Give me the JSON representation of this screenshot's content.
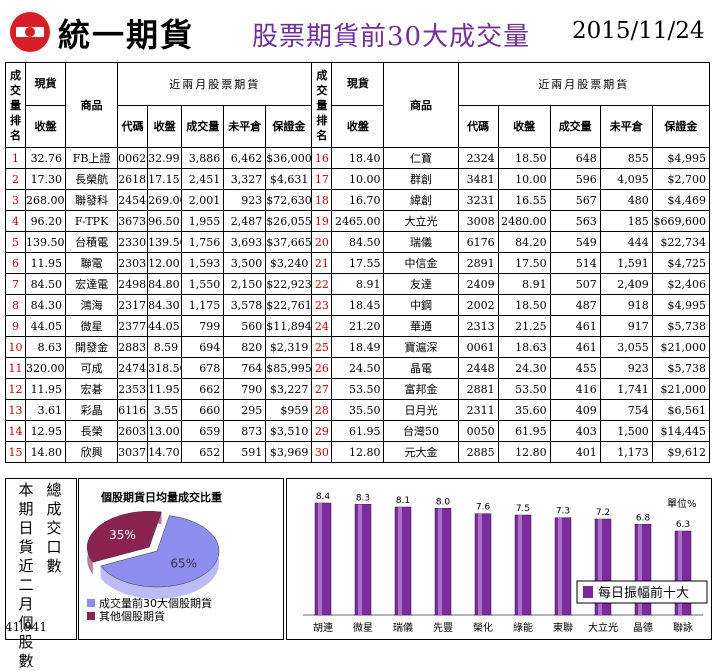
{
  "header": {
    "brand": "統一期貨",
    "title": "股票期貨前30大成交量",
    "date": "2015/11/24"
  },
  "table": {
    "rank_header": "成交量排名",
    "spot_header": "現貨",
    "close_header": "收盤",
    "product_header": "商品",
    "banner": "近兩月股票期貨",
    "col_headers": [
      "代碼",
      "收盤",
      "成交量",
      "未平倉",
      "保證金"
    ],
    "left": [
      {
        "rank": "1",
        "spot": "32.76",
        "name": "FB上證",
        "code": "006205",
        "close": "32.99",
        "vol": "3,886",
        "oi": "6,462",
        "margin": "$36,000"
      },
      {
        "rank": "2",
        "spot": "17.30",
        "name": "長榮航",
        "code": "2618",
        "close": "17.15",
        "vol": "2,451",
        "oi": "3,327",
        "margin": "$4,631"
      },
      {
        "rank": "3",
        "spot": "268.00",
        "name": "聯發科",
        "code": "2454",
        "close": "269.00",
        "vol": "2,001",
        "oi": "923",
        "margin": "$72,630"
      },
      {
        "rank": "4",
        "spot": "96.20",
        "name": "F-TPK",
        "code": "3673",
        "close": "96.50",
        "vol": "1,955",
        "oi": "2,487",
        "margin": "$26,055"
      },
      {
        "rank": "5",
        "spot": "139.50",
        "name": "台積電",
        "code": "2330",
        "close": "139.50",
        "vol": "1,756",
        "oi": "3,693",
        "margin": "$37,665"
      },
      {
        "rank": "6",
        "spot": "11.95",
        "name": "聯電",
        "code": "2303",
        "close": "12.00",
        "vol": "1,593",
        "oi": "3,500",
        "margin": "$3,240"
      },
      {
        "rank": "7",
        "spot": "84.50",
        "name": "宏達電",
        "code": "2498",
        "close": "84.80",
        "vol": "1,550",
        "oi": "2,150",
        "margin": "$22,923"
      },
      {
        "rank": "8",
        "spot": "84.30",
        "name": "鴻海",
        "code": "2317",
        "close": "84.30",
        "vol": "1,175",
        "oi": "3,578",
        "margin": "$22,761"
      },
      {
        "rank": "9",
        "spot": "44.05",
        "name": "微星",
        "code": "2377",
        "close": "44.05",
        "vol": "799",
        "oi": "560",
        "margin": "$11,894"
      },
      {
        "rank": "10",
        "spot": "8.63",
        "name": "開發金",
        "code": "2883",
        "close": "8.59",
        "vol": "694",
        "oi": "820",
        "margin": "$2,319"
      },
      {
        "rank": "11",
        "spot": "320.00",
        "name": "可成",
        "code": "2474",
        "close": "318.50",
        "vol": "678",
        "oi": "764",
        "margin": "$85,995"
      },
      {
        "rank": "12",
        "spot": "11.95",
        "name": "宏碁",
        "code": "2353",
        "close": "11.95",
        "vol": "662",
        "oi": "790",
        "margin": "$3,227"
      },
      {
        "rank": "13",
        "spot": "3.61",
        "name": "彩晶",
        "code": "6116",
        "close": "3.55",
        "vol": "660",
        "oi": "295",
        "margin": "$959"
      },
      {
        "rank": "14",
        "spot": "12.95",
        "name": "長榮",
        "code": "2603",
        "close": "13.00",
        "vol": "659",
        "oi": "873",
        "margin": "$3,510"
      },
      {
        "rank": "15",
        "spot": "14.80",
        "name": "欣興",
        "code": "3037",
        "close": "14.70",
        "vol": "652",
        "oi": "591",
        "margin": "$3,969"
      }
    ],
    "right": [
      {
        "rank": "16",
        "spot": "18.40",
        "name": "仁寶",
        "code": "2324",
        "close": "18.50",
        "vol": "648",
        "oi": "855",
        "margin": "$4,995"
      },
      {
        "rank": "17",
        "spot": "10.00",
        "name": "群創",
        "code": "3481",
        "close": "10.00",
        "vol": "596",
        "oi": "4,095",
        "margin": "$2,700"
      },
      {
        "rank": "18",
        "spot": "16.70",
        "name": "緯創",
        "code": "3231",
        "close": "16.55",
        "vol": "567",
        "oi": "480",
        "margin": "$4,469"
      },
      {
        "rank": "19",
        "spot": "2465.00",
        "name": "大立光",
        "code": "3008",
        "close": "2480.00",
        "vol": "563",
        "oi": "185",
        "margin": "$669,600"
      },
      {
        "rank": "20",
        "spot": "84.50",
        "name": "瑞儀",
        "code": "6176",
        "close": "84.20",
        "vol": "549",
        "oi": "444",
        "margin": "$22,734"
      },
      {
        "rank": "21",
        "spot": "17.55",
        "name": "中信金",
        "code": "2891",
        "close": "17.50",
        "vol": "514",
        "oi": "1,591",
        "margin": "$4,725"
      },
      {
        "rank": "22",
        "spot": "8.91",
        "name": "友達",
        "code": "2409",
        "close": "8.91",
        "vol": "507",
        "oi": "2,409",
        "margin": "$2,406"
      },
      {
        "rank": "23",
        "spot": "18.45",
        "name": "中鋼",
        "code": "2002",
        "close": "18.50",
        "vol": "487",
        "oi": "918",
        "margin": "$4,995"
      },
      {
        "rank": "24",
        "spot": "21.20",
        "name": "華通",
        "code": "2313",
        "close": "21.25",
        "vol": "461",
        "oi": "917",
        "margin": "$5,738"
      },
      {
        "rank": "25",
        "spot": "18.49",
        "name": "寶滬深",
        "code": "0061",
        "close": "18.63",
        "vol": "461",
        "oi": "3,055",
        "margin": "$21,000"
      },
      {
        "rank": "26",
        "spot": "24.50",
        "name": "晶電",
        "code": "2448",
        "close": "24.30",
        "vol": "455",
        "oi": "923",
        "margin": "$5,738"
      },
      {
        "rank": "27",
        "spot": "53.50",
        "name": "富邦金",
        "code": "2881",
        "close": "53.50",
        "vol": "416",
        "oi": "1,741",
        "margin": "$21,000"
      },
      {
        "rank": "28",
        "spot": "35.50",
        "name": "日月光",
        "code": "2311",
        "close": "35.60",
        "vol": "409",
        "oi": "754",
        "margin": "$6,561"
      },
      {
        "rank": "29",
        "spot": "61.95",
        "name": "台灣50",
        "code": "0050",
        "close": "61.95",
        "vol": "403",
        "oi": "1,500",
        "margin": "$14,445"
      },
      {
        "rank": "30",
        "spot": "12.80",
        "name": "元大金",
        "code": "2885",
        "close": "12.80",
        "vol": "401",
        "oi": "1,173",
        "margin": "$9,612"
      }
    ]
  },
  "side_label": {
    "col1": "本期日貨近二月個股數",
    "col2": "總成交口數",
    "count": "41,941"
  },
  "chart_data": [
    {
      "type": "pie",
      "title": "個股期貨日均量成交比重",
      "slices": [
        {
          "label": "成交量前30大個股期貨",
          "value": 65,
          "display": "65%",
          "color": "#8e8ef0"
        },
        {
          "label": "其他個股期貨",
          "value": 35,
          "display": "35%",
          "color": "#8b2252"
        }
      ]
    },
    {
      "type": "bar",
      "unit_label": "單位%",
      "legend": "每日振幅前十大",
      "categories": [
        "胡連",
        "微星",
        "瑞儀",
        "先豐",
        "榮化",
        "綠能",
        "東聯",
        "大立光",
        "晶德",
        "聯詠"
      ],
      "values": [
        8.4,
        8.3,
        8.1,
        8.0,
        7.6,
        7.5,
        7.3,
        7.2,
        6.8,
        6.3
      ],
      "labels": [
        "8.4",
        "8.3",
        "8.1",
        "8.0",
        "7.6",
        "7.5",
        "7.3",
        "7.2",
        "6.8",
        "6.3"
      ],
      "ylim": [
        0,
        9
      ],
      "bar_color": "#7b2c9c"
    }
  ]
}
